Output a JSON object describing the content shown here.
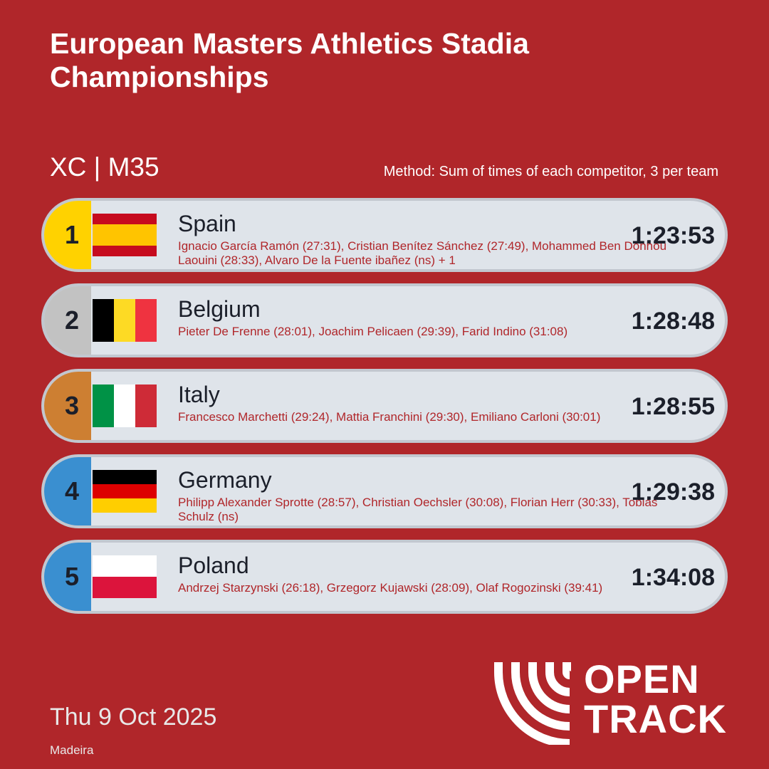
{
  "title": "European Masters Athletics Stadia Championships",
  "event": "XC | M35",
  "method": "Method: Sum of times of each competitor, 3 per team",
  "results": [
    {
      "rank": "1",
      "country": "Spain",
      "members": "Ignacio García Ramón (27:31), Cristian Benítez Sánchez (27:49), Mohammed Ben Dohhou Laouini (28:33), Alvaro De la Fuente ibañez (ns) + 1",
      "time": "1:23:53",
      "rank_color": "#ffd200",
      "flag": {
        "name": "spain-flag",
        "stripes": "horizontal",
        "colors": [
          "#c60b1e",
          "#ffc400",
          "#ffc400",
          "#c60b1e"
        ]
      }
    },
    {
      "rank": "2",
      "country": "Belgium",
      "members": "Pieter De Frenne (28:01), Joachim Pelicaen (29:39), Farid Indino (31:08)",
      "time": "1:28:48",
      "rank_color": "#c2c2c2",
      "flag": {
        "name": "belgium-flag",
        "stripes": "vertical",
        "colors": [
          "#000000",
          "#fdda24",
          "#ef3340"
        ]
      }
    },
    {
      "rank": "3",
      "country": "Italy",
      "members": "Francesco Marchetti (29:24), Mattia Franchini (29:30), Emiliano Carloni (30:01)",
      "time": "1:28:55",
      "rank_color": "#cd7f32",
      "flag": {
        "name": "italy-flag",
        "stripes": "vertical",
        "colors": [
          "#009246",
          "#ffffff",
          "#ce2b37"
        ]
      }
    },
    {
      "rank": "4",
      "country": "Germany",
      "members": "Philipp Alexander Sprotte (28:57), Christian Oechsler (30:08), Florian Herr (30:33), Tobias Schulz (ns)",
      "time": "1:29:38",
      "rank_color": "#3a8fd0",
      "flag": {
        "name": "germany-flag",
        "stripes": "horizontal",
        "colors": [
          "#000000",
          "#dd0000",
          "#ffce00"
        ]
      }
    },
    {
      "rank": "5",
      "country": "Poland",
      "members": "Andrzej Starzynski (26:18), Grzegorz Kujawski (28:09), Olaf Rogozinski (39:41)",
      "time": "1:34:08",
      "rank_color": "#3a8fd0",
      "flag": {
        "name": "poland-flag",
        "stripes": "horizontal",
        "colors": [
          "#ffffff",
          "#dc143c"
        ]
      }
    }
  ],
  "date": "Thu 9 Oct 2025",
  "location": "Madeira",
  "logo": {
    "line1": "OPEN",
    "line2": "TRACK",
    "icon": "opentrack-arc-icon"
  },
  "colors": {
    "background": "#b0262a",
    "card": "#dfe4ea",
    "card_border": "#c2c7cf",
    "text_dark": "#1b1f2a"
  }
}
